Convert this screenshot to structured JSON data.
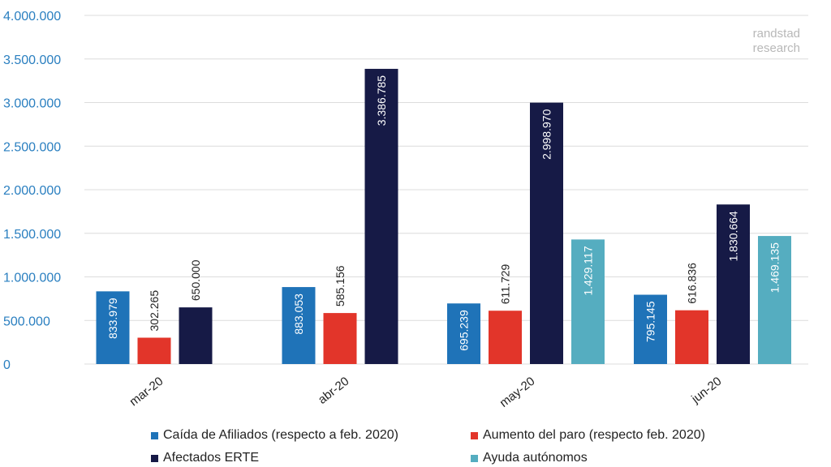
{
  "watermark": {
    "line1": "randstad",
    "line2": "research"
  },
  "chart_data": {
    "type": "bar",
    "categories": [
      "mar-20",
      "abr-20",
      "may-20",
      "jun-20"
    ],
    "series": [
      {
        "name": "Caída de Afiliados (respecto a feb. 2020)",
        "color": "#1f73b8",
        "values": [
          833979,
          883053,
          695239,
          795145
        ],
        "labels": [
          "833.979",
          "883.053",
          "695.239",
          "795.145"
        ]
      },
      {
        "name": "Aumento del paro (respecto feb. 2020)",
        "color": "#e2352a",
        "values": [
          302265,
          585156,
          611729,
          616836
        ],
        "labels": [
          "302.265",
          "585.156",
          "611.729",
          "616.836"
        ]
      },
      {
        "name": "Afectados ERTE",
        "color": "#161a46",
        "values": [
          650000,
          3386785,
          2998970,
          1830664
        ],
        "labels": [
          "650.000",
          "3.386.785",
          "2.998.970",
          "1.830.664"
        ]
      },
      {
        "name": "Ayuda autónomos",
        "color": "#55adc0",
        "values": [
          null,
          null,
          1429117,
          1469135
        ],
        "labels": [
          null,
          null,
          "1.429.117",
          "1.469.135"
        ]
      }
    ],
    "ylim": [
      0,
      4000000
    ],
    "yticks": [
      0,
      500000,
      1000000,
      1500000,
      2000000,
      2500000,
      3000000,
      3500000,
      4000000
    ],
    "ytick_labels": [
      "0",
      "500.000",
      "1.000.000",
      "1.500.000",
      "2.000.000",
      "2.500.000",
      "3.000.000",
      "3.500.000",
      "4.000.000"
    ],
    "grid": true,
    "legend_position": "bottom",
    "title": "",
    "xlabel": "",
    "ylabel": ""
  }
}
